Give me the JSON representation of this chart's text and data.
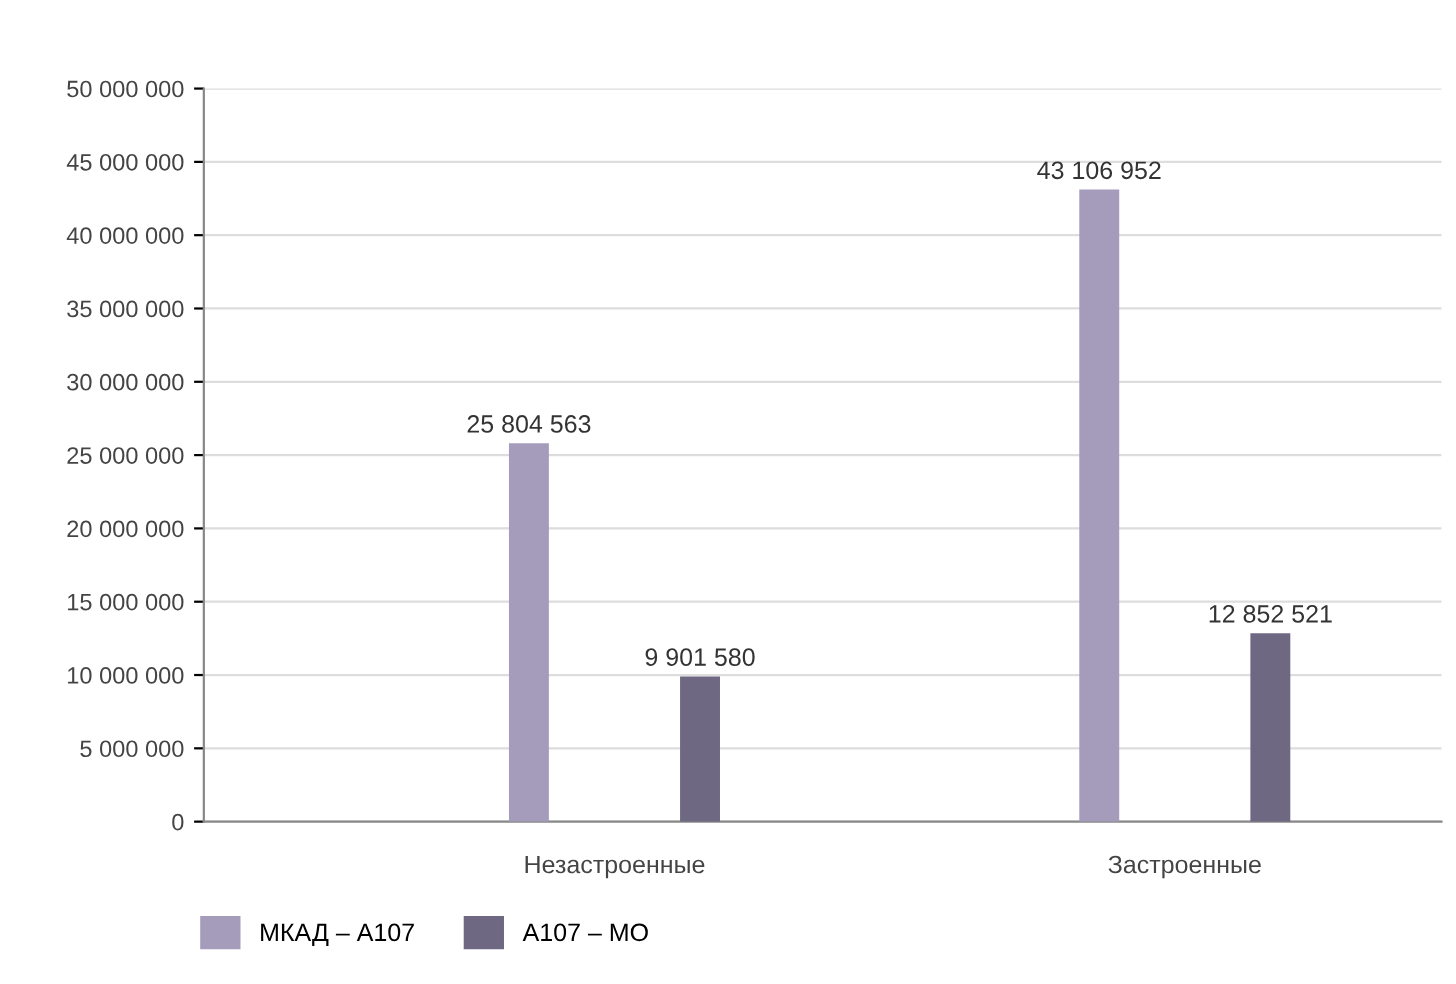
{
  "chart_data": {
    "type": "bar",
    "categories": [
      "Незастроенные",
      "Застроенные"
    ],
    "series": [
      {
        "name": "МКАД – А107",
        "color": "#a49cba",
        "values": [
          25804563,
          43106952
        ],
        "value_labels": [
          "25 804 563",
          "43 106 952"
        ]
      },
      {
        "name": "А107 – МО",
        "color": "#6f6882",
        "values": [
          9901580,
          12852521
        ],
        "value_labels": [
          "9 901 580",
          "12 852 521"
        ]
      }
    ],
    "ylim": [
      0,
      50000000
    ],
    "yticks": [
      {
        "value": 0,
        "label": "0"
      },
      {
        "value": 5000000,
        "label": "5 000 000"
      },
      {
        "value": 10000000,
        "label": "10 000 000"
      },
      {
        "value": 15000000,
        "label": "15 000 000"
      },
      {
        "value": 20000000,
        "label": "20 000 000"
      },
      {
        "value": 25000000,
        "label": "25 000 000"
      },
      {
        "value": 30000000,
        "label": "30 000 000"
      },
      {
        "value": 35000000,
        "label": "35 000 000"
      },
      {
        "value": 40000000,
        "label": "40 000 000"
      },
      {
        "value": 45000000,
        "label": "45 000 000"
      },
      {
        "value": 50000000,
        "label": "50 000 000"
      }
    ],
    "grid": "y",
    "legend": "bottom left"
  }
}
